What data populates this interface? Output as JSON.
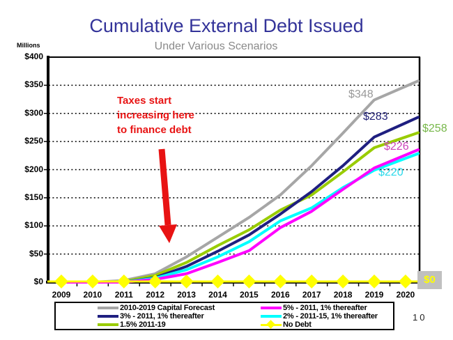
{
  "page_number": "10",
  "chart_data": {
    "type": "line",
    "title": "Cumulative External Debt Issued",
    "subtitle": "Under Various Scenarios",
    "ylabel": "Millions",
    "ylim": [
      0,
      400
    ],
    "ytick_step": 50,
    "ytick_labels": [
      "$0",
      "$50",
      "$100",
      "$150",
      "$200",
      "$250",
      "$300",
      "$350",
      "$400"
    ],
    "grid": "horizontal-dotted",
    "legend_position": "bottom",
    "categories": [
      "2009",
      "2010",
      "2011",
      "2012",
      "2013",
      "2014",
      "2015",
      "2016",
      "2017",
      "2018",
      "2019",
      "2020"
    ],
    "series": [
      {
        "name": "2010-2019 Capital Forecast",
        "color": "#a6a6a6",
        "label_color": "#999999",
        "end_label": "$348",
        "values": [
          0,
          0,
          3,
          15,
          45,
          80,
          115,
          155,
          207,
          265,
          324,
          348
        ]
      },
      {
        "name": "3% - 2011, 1% thereafter",
        "color": "#1f1f80",
        "label_color": "#242478",
        "end_label": "$283",
        "values": [
          0,
          0,
          0,
          8,
          28,
          55,
          84,
          121,
          161,
          207,
          258,
          283
        ]
      },
      {
        "name": "1.5% 2011-19",
        "color": "#99cc00",
        "label_color": "#77b74a",
        "end_label": "$258",
        "values": [
          0,
          0,
          1,
          12,
          35,
          65,
          93,
          128,
          155,
          196,
          239,
          258
        ]
      },
      {
        "name": "5% - 2011, 1% thereafter",
        "color": "#ff00ff",
        "label_color": "#cc44bb",
        "end_label": "$226",
        "values": [
          0,
          0,
          0,
          5,
          15,
          35,
          56,
          97,
          126,
          165,
          203,
          226
        ]
      },
      {
        "name": "2% - 2011-15, 1% thereafter",
        "color": "#00ffff",
        "label_color": "#2bd9ea",
        "end_label": "$220",
        "values": [
          0,
          0,
          0,
          7,
          22,
          45,
          72,
          109,
          132,
          168,
          199,
          220
        ]
      },
      {
        "name": "No Debt",
        "color": "#ffff00",
        "marker": "diamond",
        "label_color": "#ffff00",
        "end_label": "$0",
        "values": [
          0,
          0,
          0,
          0,
          0,
          0,
          0,
          0,
          0,
          0,
          0,
          0
        ]
      }
    ],
    "annotation": "Taxes start\nincreasing here\nto finance debt",
    "annotation_color": "#e81313"
  }
}
